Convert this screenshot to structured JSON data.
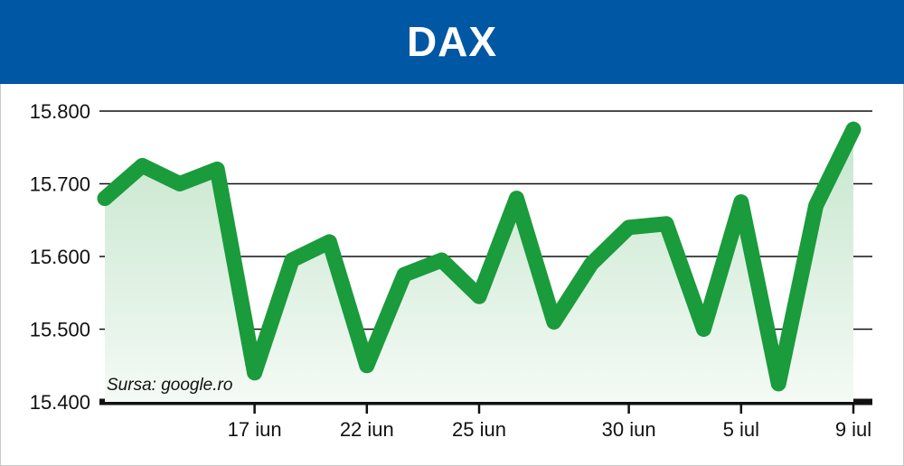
{
  "title": "DAX",
  "source": "Sursa: google.ro",
  "chart_data": {
    "type": "area",
    "title": "DAX",
    "xlabel": "",
    "ylabel": "",
    "ylim": [
      15400,
      15800
    ],
    "yticks": [
      15800,
      15700,
      15600,
      15500,
      15400
    ],
    "ytick_labels": [
      "15.800",
      "15.700",
      "15.600",
      "15.500",
      "15.400"
    ],
    "xtick_labels": [
      "17 iun",
      "22 iun",
      "25 iun",
      "30 iun",
      "5 iul",
      "9 iul"
    ],
    "xtick_index": [
      4,
      7,
      10,
      14,
      17,
      20
    ],
    "grid": true,
    "values": [
      15680,
      15725,
      15700,
      15720,
      15440,
      15595,
      15620,
      15450,
      15575,
      15595,
      15545,
      15680,
      15510,
      15590,
      15640,
      15645,
      15500,
      15675,
      15425,
      15670,
      15775
    ],
    "line_color": "#1a9b3c",
    "fill_color": "#dcefe0"
  }
}
